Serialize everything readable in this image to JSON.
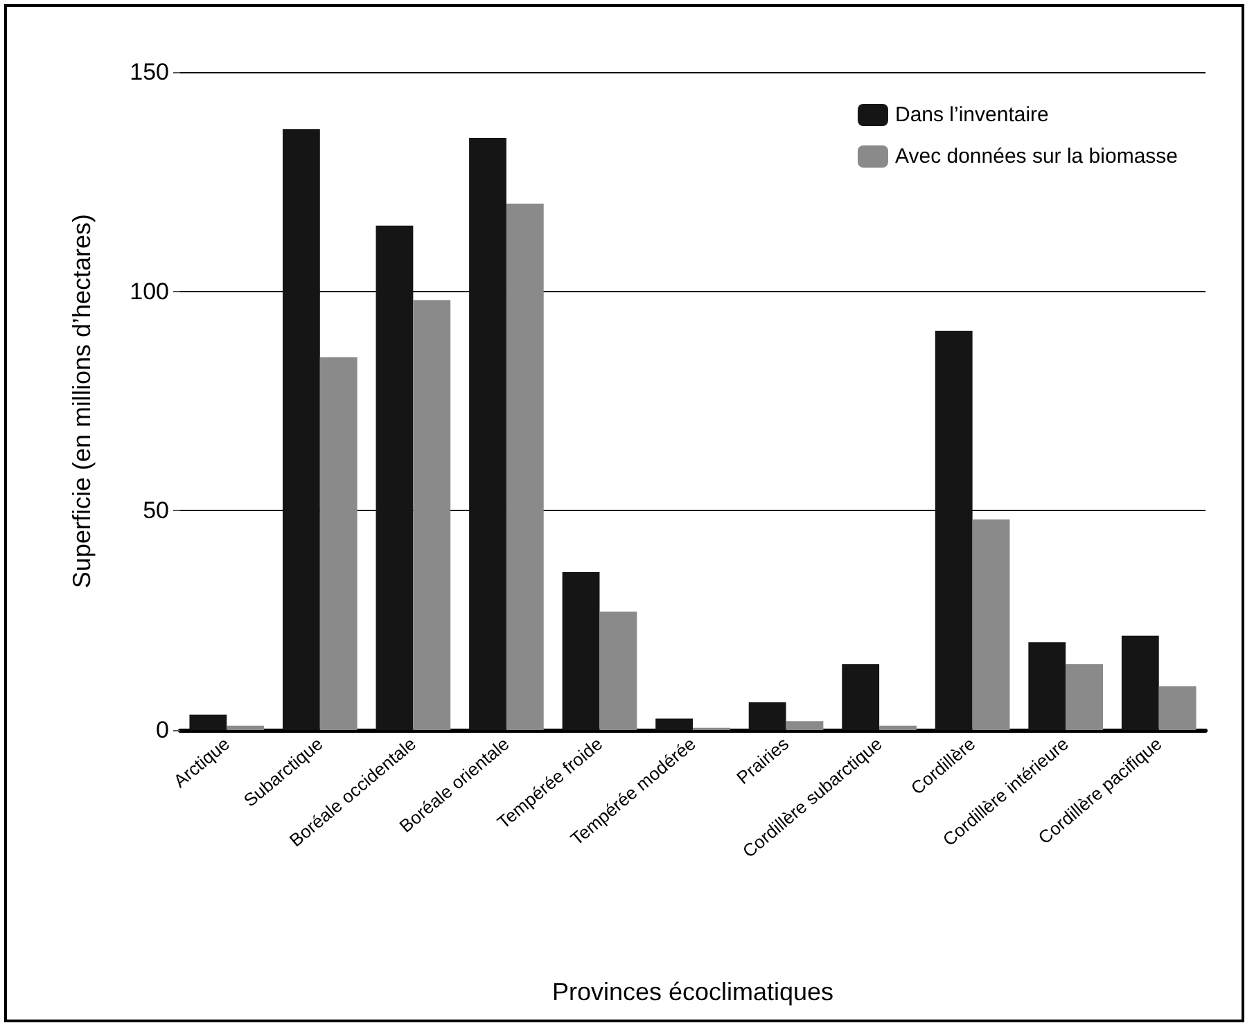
{
  "chart_data": {
    "type": "bar",
    "xlabel": "Provinces écoclimatiques",
    "ylabel": "Superficie (en millions d’hectares)",
    "categories": [
      "Arctique",
      "Subarctique",
      "Boréale occidentale",
      "Boréale orientale",
      "Tempérée froide",
      "Tempérée modérée",
      "Prairies",
      "Cordillère subarctique",
      "Cordillère",
      "Cordillère intérieure",
      "Cordillère pacifique"
    ],
    "series": [
      {
        "name": "Dans l’inventaire",
        "color": "#151515",
        "values": [
          3.5,
          137,
          115,
          135,
          36,
          2.6,
          6.3,
          15,
          91,
          20,
          21.5
        ]
      },
      {
        "name": "Avec données sur la biomasse",
        "color": "#8a8a8a",
        "values": [
          1,
          85,
          98,
          120,
          27,
          0.5,
          2,
          1,
          48,
          15,
          10
        ]
      }
    ],
    "ylim": [
      0,
      150
    ],
    "yticks": [
      0,
      50,
      100,
      150
    ],
    "grid": "y",
    "legend": "top right"
  }
}
